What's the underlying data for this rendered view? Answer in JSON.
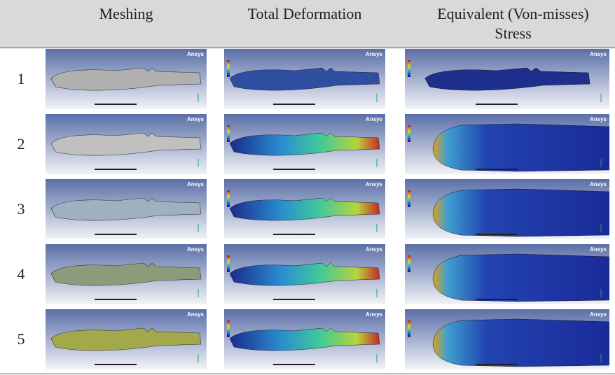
{
  "table": {
    "header": [
      "Meshing",
      "Total Deformation",
      "Equivalent (Von-misses) Stress"
    ],
    "rows": [
      "1",
      "2",
      "3",
      "4",
      "5"
    ]
  },
  "image_brand": "Ansys"
}
